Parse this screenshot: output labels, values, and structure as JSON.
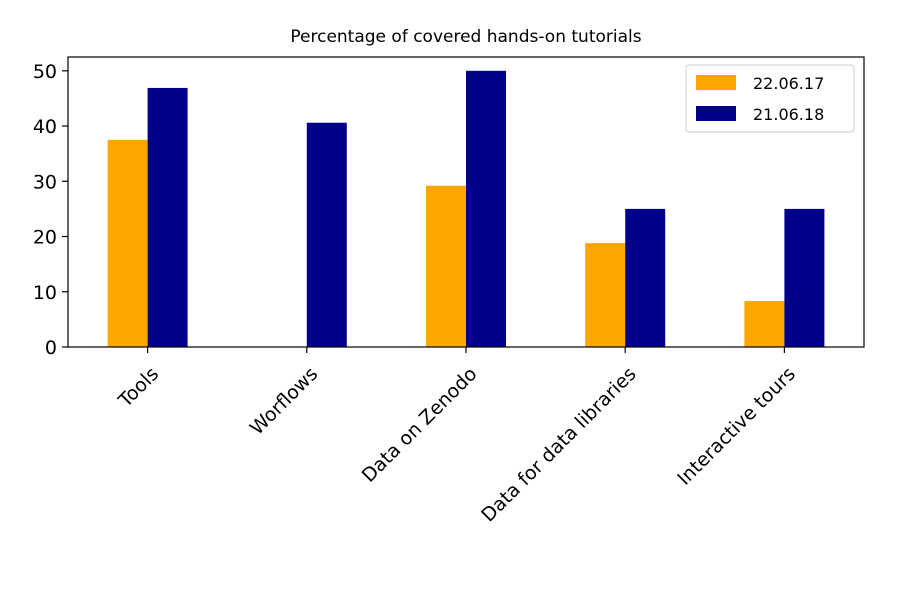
{
  "chart_data": {
    "type": "bar",
    "title": "Percentage of covered hands-on tutorials",
    "xlabel": "",
    "ylabel": "",
    "categories": [
      "Tools",
      "Worflows",
      "Data on Zenodo",
      "Data for data libraries",
      "Interactive tours"
    ],
    "series": [
      {
        "name": "22.06.17",
        "color": "#ffa500",
        "values": [
          37.5,
          0,
          29.2,
          18.8,
          8.3
        ]
      },
      {
        "name": "21.06.18",
        "color": "#00008b",
        "values": [
          46.9,
          40.6,
          50.0,
          25.0,
          25.0
        ]
      }
    ],
    "ylim": [
      0,
      52.5
    ],
    "yticks": [
      0,
      10,
      20,
      30,
      40,
      50
    ],
    "grid": false,
    "legend": "top-right"
  }
}
